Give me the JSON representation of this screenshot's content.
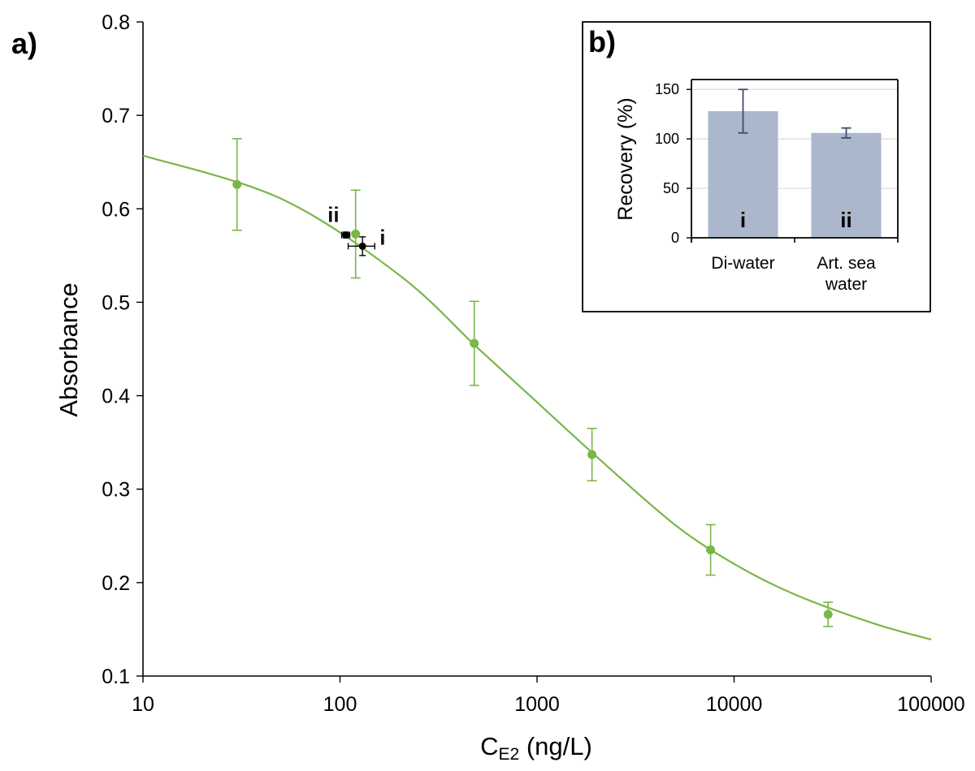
{
  "colors": {
    "series": "#7ab648",
    "samples": "#000000",
    "bars": "#aab7cc",
    "bar_error": "#3d4f66",
    "grid": "#d9d9d9"
  },
  "chart_data": [
    {
      "panel": "a)",
      "type": "scatter",
      "xscale": "log",
      "xlabel_main": "C",
      "xlabel_sub": "E2",
      "xlabel_rest": " (ng/L)",
      "ylabel": "Absorbance",
      "xlim": [
        10,
        100000
      ],
      "ylim": [
        0.1,
        0.8
      ],
      "xticks": [
        10,
        100,
        1000,
        10000,
        100000
      ],
      "xtick_labels": [
        "10",
        "100",
        "1000",
        "10000",
        "100000"
      ],
      "yticks": [
        0.1,
        0.2,
        0.3,
        0.4,
        0.5,
        0.6,
        0.7,
        0.8
      ],
      "ytick_labels": [
        "0.1",
        "0.2",
        "0.3",
        "0.4",
        "0.5",
        "0.6",
        "0.7",
        "0.8"
      ],
      "series": [
        {
          "name": "calibration",
          "x": [
            30,
            120,
            480,
            1900,
            7600,
            30000
          ],
          "y": [
            0.626,
            0.573,
            0.456,
            0.337,
            0.235,
            0.166
          ],
          "yerr": [
            0.049,
            0.047,
            0.045,
            0.028,
            0.027,
            0.013
          ]
        }
      ],
      "fit_curve": {
        "x": [
          10,
          50,
          200,
          500,
          1000,
          2000,
          5000,
          10000,
          20000,
          50000,
          100000
        ],
        "y": [
          0.657,
          0.611,
          0.529,
          0.451,
          0.393,
          0.335,
          0.262,
          0.22,
          0.188,
          0.157,
          0.139
        ]
      },
      "samples": [
        {
          "label": "ii",
          "x": 107,
          "y": 0.572,
          "xerr": 5,
          "yerr": 0.003
        },
        {
          "label": "i",
          "x": 130,
          "y": 0.56,
          "xerr": 20,
          "yerr": 0.01
        }
      ]
    },
    {
      "panel": "b)",
      "type": "bar",
      "ylabel": "Recovery (%)",
      "ylim": [
        0,
        160
      ],
      "yticks": [
        0,
        50,
        100,
        150
      ],
      "ytick_labels": [
        "0",
        "50",
        "100",
        "150"
      ],
      "categories": [
        "Di-water",
        "Art. sea water"
      ],
      "category_lines": [
        [
          "Di-water"
        ],
        [
          "Art. sea",
          "water"
        ]
      ],
      "bar_labels": [
        "i",
        "ii"
      ],
      "values": [
        128,
        106
      ],
      "errors": [
        22,
        5
      ]
    }
  ]
}
